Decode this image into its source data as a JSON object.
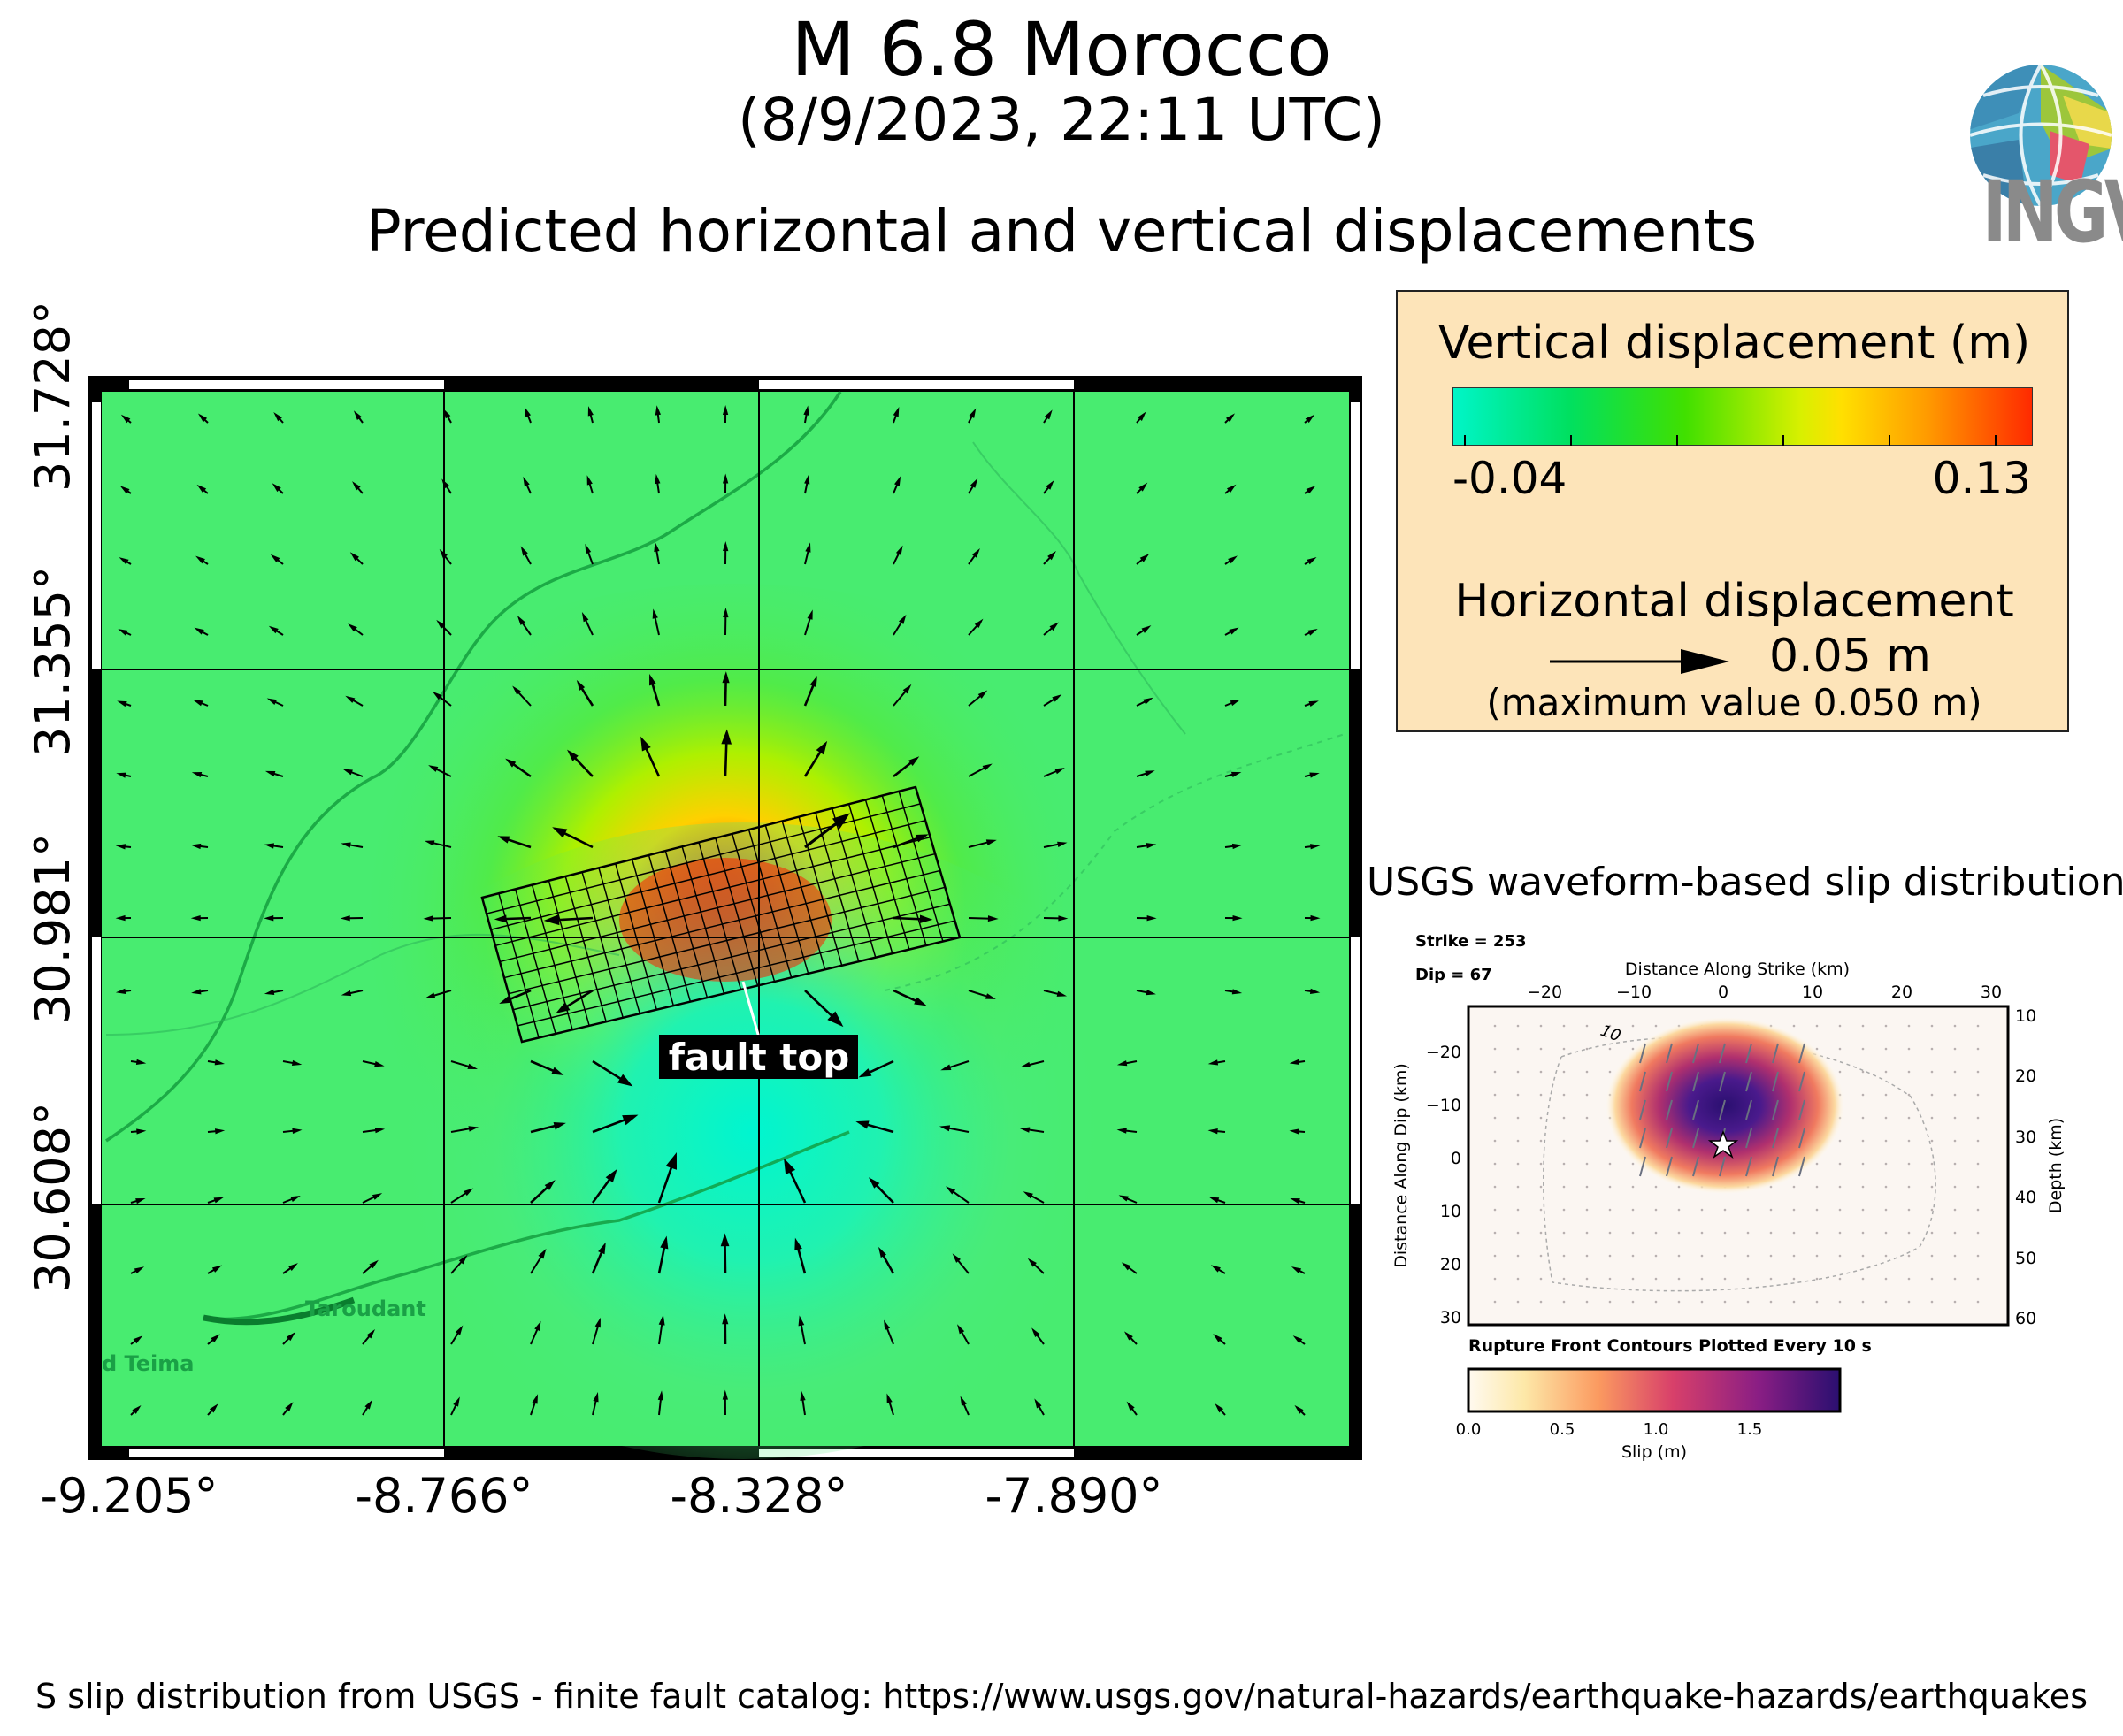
{
  "header": {
    "title": "M 6.8 Morocco",
    "subtitle": "(8/9/2023, 22:11 UTC)",
    "heading": "Predicted horizontal and vertical displacements"
  },
  "logo": {
    "text": "INGV"
  },
  "map": {
    "y_ticks": [
      "31.728°",
      "31.355°",
      "30.981°",
      "30.608°"
    ],
    "x_ticks": [
      "-9.205°",
      "-8.766°",
      "-8.328°",
      "-7.890°"
    ],
    "places": [
      "Taroudant",
      "d Teima"
    ],
    "fault_label": "fault top"
  },
  "legend": {
    "vertical_title": "Vertical displacement (m)",
    "vertical_min": "-0.04",
    "vertical_max": "0.13",
    "horizontal_title": "Horizontal displacement",
    "scale_value": "0.05 m",
    "max_note": "(maximum value 0.050 m)",
    "colors": {
      "min": "#00f5c8",
      "mid": "#ffe000",
      "max": "#ff2a00"
    }
  },
  "slip": {
    "title": "USGS waveform-based slip distribution",
    "strike": "Strike = 253",
    "dip": "Dip = 67",
    "top_axis_label": "Distance Along Strike (km)",
    "left_axis_label": "Distance Along Dip (km)",
    "right_axis_label": "Depth (km)",
    "top_ticks": [
      "−20",
      "−10",
      "0",
      "10",
      "20",
      "30"
    ],
    "left_ticks": [
      "−20",
      "−10",
      "0",
      "10",
      "20",
      "30"
    ],
    "right_ticks": [
      "10",
      "20",
      "30",
      "40",
      "50",
      "60"
    ],
    "contour_label": "10",
    "caption": "Rupture Front Contours Plotted Every 10 s",
    "colorbar_ticks": [
      "0.0",
      "0.5",
      "1.0",
      "1.5"
    ],
    "colorbar_label": "Slip (m)"
  },
  "footer": {
    "text": "S slip distribution from USGS - finite fault catalog: https://www.usgs.gov/natural-hazards/earthquake-hazards/earthquakes"
  }
}
